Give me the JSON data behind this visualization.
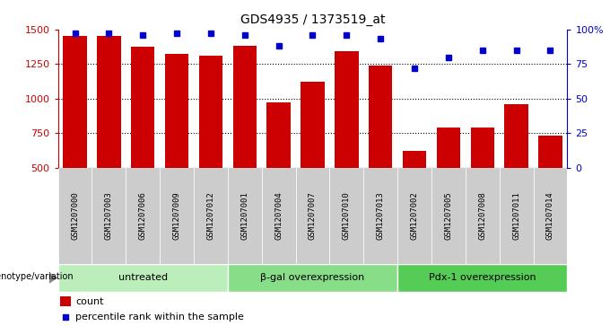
{
  "title": "GDS4935 / 1373519_at",
  "samples": [
    "GSM1207000",
    "GSM1207003",
    "GSM1207006",
    "GSM1207009",
    "GSM1207012",
    "GSM1207001",
    "GSM1207004",
    "GSM1207007",
    "GSM1207010",
    "GSM1207013",
    "GSM1207002",
    "GSM1207005",
    "GSM1207008",
    "GSM1207011",
    "GSM1207014"
  ],
  "counts": [
    1450,
    1450,
    1375,
    1320,
    1310,
    1380,
    975,
    1120,
    1340,
    1240,
    620,
    790,
    790,
    960,
    730
  ],
  "percentiles": [
    97,
    97,
    96,
    97,
    97,
    96,
    88,
    96,
    96,
    93,
    72,
    80,
    85,
    85,
    85
  ],
  "groups": [
    {
      "label": "untreated",
      "start": 0,
      "end": 5,
      "color": "#bbeebb"
    },
    {
      "label": "β-gal overexpression",
      "start": 5,
      "end": 10,
      "color": "#88dd88"
    },
    {
      "label": "Pdx-1 overexpression",
      "start": 10,
      "end": 15,
      "color": "#55cc55"
    }
  ],
  "bar_color": "#cc0000",
  "dot_color": "#0000cc",
  "ylim_left": [
    500,
    1500
  ],
  "ylim_right": [
    0,
    100
  ],
  "yticks_left": [
    500,
    750,
    1000,
    1250,
    1500
  ],
  "yticks_right": [
    0,
    25,
    50,
    75,
    100
  ],
  "ylabel_right_labels": [
    "0",
    "25",
    "50",
    "75",
    "100%"
  ],
  "grid_yticks": [
    750,
    1000,
    1250
  ],
  "bar_width": 0.7,
  "title_color": "#000000",
  "left_axis_color": "#cc0000",
  "right_axis_color": "#0000cc",
  "genotype_label": "genotype/variation",
  "legend_count_label": "count",
  "legend_percentile_label": "percentile rank within the sample",
  "label_bg_color": "#cccccc",
  "fig_width": 6.8,
  "fig_height": 3.63
}
